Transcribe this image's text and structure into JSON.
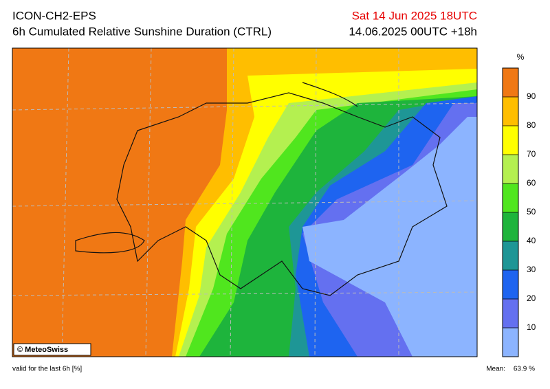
{
  "header": {
    "title": "ICON-CH2-EPS",
    "subtitle": "6h Cumulated Relative Sunshine Duration (CTRL)",
    "valid_time": "Sat 14 Jun 2025 18UTC",
    "run": "14.06.2025 00UTC +18h"
  },
  "map": {
    "credit": "© MeteoSwiss"
  },
  "colorbar": {
    "unit": "%",
    "range": [
      0,
      100
    ],
    "ticks": [
      10,
      20,
      30,
      40,
      50,
      60,
      70,
      80,
      90
    ],
    "colors": [
      "#8cb4ff",
      "#6470f0",
      "#1e64f0",
      "#1e9696",
      "#1eb43c",
      "#50e61e",
      "#b4f050",
      "#ffff00",
      "#ffbe00",
      "#f07814"
    ]
  },
  "footer": {
    "note": "valid for the last 6h [%]",
    "mean_label": "Mean:",
    "mean_value": "63.9 %"
  }
}
